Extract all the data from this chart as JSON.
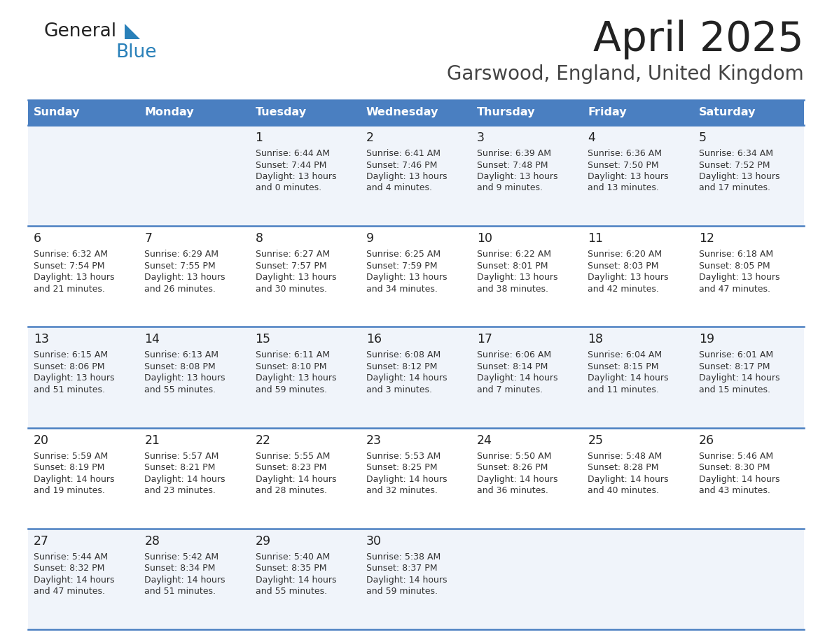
{
  "title": "April 2025",
  "subtitle": "Garswood, England, United Kingdom",
  "days_of_week": [
    "Sunday",
    "Monday",
    "Tuesday",
    "Wednesday",
    "Thursday",
    "Friday",
    "Saturday"
  ],
  "header_bg": "#4a7fc1",
  "header_text": "#FFFFFF",
  "row_bg_odd": "#FFFFFF",
  "row_bg_even": "#F0F4FA",
  "border_color": "#4a7fc1",
  "title_color": "#222222",
  "subtitle_color": "#444444",
  "day_number_color": "#222222",
  "cell_text_color": "#333333",
  "calendar": [
    [
      {
        "day": null,
        "sunrise": null,
        "sunset": null,
        "daylight": null
      },
      {
        "day": null,
        "sunrise": null,
        "sunset": null,
        "daylight": null
      },
      {
        "day": 1,
        "sunrise": "6:44 AM",
        "sunset": "7:44 PM",
        "daylight_h": "13 hours",
        "daylight_m": "and 0 minutes."
      },
      {
        "day": 2,
        "sunrise": "6:41 AM",
        "sunset": "7:46 PM",
        "daylight_h": "13 hours",
        "daylight_m": "and 4 minutes."
      },
      {
        "day": 3,
        "sunrise": "6:39 AM",
        "sunset": "7:48 PM",
        "daylight_h": "13 hours",
        "daylight_m": "and 9 minutes."
      },
      {
        "day": 4,
        "sunrise": "6:36 AM",
        "sunset": "7:50 PM",
        "daylight_h": "13 hours",
        "daylight_m": "and 13 minutes."
      },
      {
        "day": 5,
        "sunrise": "6:34 AM",
        "sunset": "7:52 PM",
        "daylight_h": "13 hours",
        "daylight_m": "and 17 minutes."
      }
    ],
    [
      {
        "day": 6,
        "sunrise": "6:32 AM",
        "sunset": "7:54 PM",
        "daylight_h": "13 hours",
        "daylight_m": "and 21 minutes."
      },
      {
        "day": 7,
        "sunrise": "6:29 AM",
        "sunset": "7:55 PM",
        "daylight_h": "13 hours",
        "daylight_m": "and 26 minutes."
      },
      {
        "day": 8,
        "sunrise": "6:27 AM",
        "sunset": "7:57 PM",
        "daylight_h": "13 hours",
        "daylight_m": "and 30 minutes."
      },
      {
        "day": 9,
        "sunrise": "6:25 AM",
        "sunset": "7:59 PM",
        "daylight_h": "13 hours",
        "daylight_m": "and 34 minutes."
      },
      {
        "day": 10,
        "sunrise": "6:22 AM",
        "sunset": "8:01 PM",
        "daylight_h": "13 hours",
        "daylight_m": "and 38 minutes."
      },
      {
        "day": 11,
        "sunrise": "6:20 AM",
        "sunset": "8:03 PM",
        "daylight_h": "13 hours",
        "daylight_m": "and 42 minutes."
      },
      {
        "day": 12,
        "sunrise": "6:18 AM",
        "sunset": "8:05 PM",
        "daylight_h": "13 hours",
        "daylight_m": "and 47 minutes."
      }
    ],
    [
      {
        "day": 13,
        "sunrise": "6:15 AM",
        "sunset": "8:06 PM",
        "daylight_h": "13 hours",
        "daylight_m": "and 51 minutes."
      },
      {
        "day": 14,
        "sunrise": "6:13 AM",
        "sunset": "8:08 PM",
        "daylight_h": "13 hours",
        "daylight_m": "and 55 minutes."
      },
      {
        "day": 15,
        "sunrise": "6:11 AM",
        "sunset": "8:10 PM",
        "daylight_h": "13 hours",
        "daylight_m": "and 59 minutes."
      },
      {
        "day": 16,
        "sunrise": "6:08 AM",
        "sunset": "8:12 PM",
        "daylight_h": "14 hours",
        "daylight_m": "and 3 minutes."
      },
      {
        "day": 17,
        "sunrise": "6:06 AM",
        "sunset": "8:14 PM",
        "daylight_h": "14 hours",
        "daylight_m": "and 7 minutes."
      },
      {
        "day": 18,
        "sunrise": "6:04 AM",
        "sunset": "8:15 PM",
        "daylight_h": "14 hours",
        "daylight_m": "and 11 minutes."
      },
      {
        "day": 19,
        "sunrise": "6:01 AM",
        "sunset": "8:17 PM",
        "daylight_h": "14 hours",
        "daylight_m": "and 15 minutes."
      }
    ],
    [
      {
        "day": 20,
        "sunrise": "5:59 AM",
        "sunset": "8:19 PM",
        "daylight_h": "14 hours",
        "daylight_m": "and 19 minutes."
      },
      {
        "day": 21,
        "sunrise": "5:57 AM",
        "sunset": "8:21 PM",
        "daylight_h": "14 hours",
        "daylight_m": "and 23 minutes."
      },
      {
        "day": 22,
        "sunrise": "5:55 AM",
        "sunset": "8:23 PM",
        "daylight_h": "14 hours",
        "daylight_m": "and 28 minutes."
      },
      {
        "day": 23,
        "sunrise": "5:53 AM",
        "sunset": "8:25 PM",
        "daylight_h": "14 hours",
        "daylight_m": "and 32 minutes."
      },
      {
        "day": 24,
        "sunrise": "5:50 AM",
        "sunset": "8:26 PM",
        "daylight_h": "14 hours",
        "daylight_m": "and 36 minutes."
      },
      {
        "day": 25,
        "sunrise": "5:48 AM",
        "sunset": "8:28 PM",
        "daylight_h": "14 hours",
        "daylight_m": "and 40 minutes."
      },
      {
        "day": 26,
        "sunrise": "5:46 AM",
        "sunset": "8:30 PM",
        "daylight_h": "14 hours",
        "daylight_m": "and 43 minutes."
      }
    ],
    [
      {
        "day": 27,
        "sunrise": "5:44 AM",
        "sunset": "8:32 PM",
        "daylight_h": "14 hours",
        "daylight_m": "and 47 minutes."
      },
      {
        "day": 28,
        "sunrise": "5:42 AM",
        "sunset": "8:34 PM",
        "daylight_h": "14 hours",
        "daylight_m": "and 51 minutes."
      },
      {
        "day": 29,
        "sunrise": "5:40 AM",
        "sunset": "8:35 PM",
        "daylight_h": "14 hours",
        "daylight_m": "and 55 minutes."
      },
      {
        "day": 30,
        "sunrise": "5:38 AM",
        "sunset": "8:37 PM",
        "daylight_h": "14 hours",
        "daylight_m": "and 59 minutes."
      },
      {
        "day": null,
        "sunrise": null,
        "sunset": null,
        "daylight_h": null,
        "daylight_m": null
      },
      {
        "day": null,
        "sunrise": null,
        "sunset": null,
        "daylight_h": null,
        "daylight_m": null
      },
      {
        "day": null,
        "sunrise": null,
        "sunset": null,
        "daylight_h": null,
        "daylight_m": null
      }
    ]
  ],
  "logo_triangle_color": "#2980b9",
  "logo_general_color": "#222222",
  "logo_blue_color": "#2980b9"
}
